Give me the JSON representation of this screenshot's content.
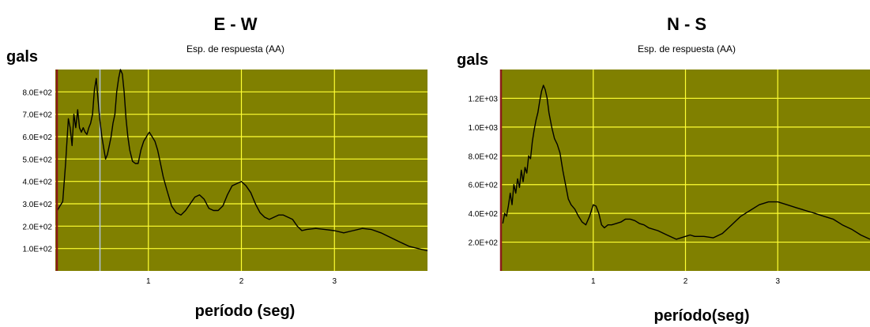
{
  "colors": {
    "plot_background": "#808000",
    "grid": "#ffff33",
    "series": "#000000",
    "left_edge": "#8b1a1a",
    "cursor_line": "#b0c4de"
  },
  "chart_data": [
    {
      "type": "line",
      "title": "E - W",
      "subtitle": "Esp. de respuesta (AA)",
      "ylabel": "gals",
      "xlabel": "período (seg)",
      "xlim": [
        0.0,
        4.0
      ],
      "ylim": [
        0,
        900
      ],
      "x_ticks": [
        {
          "value": 1,
          "label": "1"
        },
        {
          "value": 2,
          "label": "2"
        },
        {
          "value": 3,
          "label": "3"
        }
      ],
      "y_ticks": [
        {
          "value": 100,
          "label": "1.0E+02"
        },
        {
          "value": 200,
          "label": "2.0E+02"
        },
        {
          "value": 300,
          "label": "3.0E+02"
        },
        {
          "value": 400,
          "label": "4.0E+02"
        },
        {
          "value": 500,
          "label": "5.0E+02"
        },
        {
          "value": 600,
          "label": "6.0E+02"
        },
        {
          "value": 700,
          "label": "7.0E+02"
        },
        {
          "value": 800,
          "label": "8.0E+02"
        }
      ],
      "grid": true,
      "cursor_x": 0.48,
      "series": [
        {
          "x": [
            0.02,
            0.05,
            0.08,
            0.11,
            0.14,
            0.16,
            0.18,
            0.2,
            0.22,
            0.24,
            0.26,
            0.28,
            0.3,
            0.32,
            0.34,
            0.36,
            0.38,
            0.4,
            0.42,
            0.44,
            0.46,
            0.48,
            0.5,
            0.52,
            0.54,
            0.56,
            0.58,
            0.6,
            0.62,
            0.64,
            0.66,
            0.68,
            0.7,
            0.72,
            0.74,
            0.76,
            0.78,
            0.8,
            0.83,
            0.86,
            0.89,
            0.92,
            0.95,
            0.98,
            1.01,
            1.04,
            1.07,
            1.1,
            1.13,
            1.16,
            1.2,
            1.25,
            1.3,
            1.35,
            1.4,
            1.45,
            1.5,
            1.55,
            1.6,
            1.65,
            1.7,
            1.75,
            1.8,
            1.85,
            1.9,
            1.95,
            2.0,
            2.05,
            2.1,
            2.15,
            2.2,
            2.25,
            2.3,
            2.35,
            2.4,
            2.45,
            2.5,
            2.55,
            2.6,
            2.65,
            2.7,
            2.8,
            2.9,
            3.0,
            3.1,
            3.2,
            3.3,
            3.4,
            3.5,
            3.6,
            3.7,
            3.8,
            3.9,
            4.0
          ],
          "y": [
            270,
            290,
            310,
            480,
            680,
            640,
            560,
            700,
            640,
            720,
            640,
            620,
            640,
            620,
            610,
            640,
            660,
            700,
            810,
            860,
            760,
            670,
            600,
            550,
            500,
            520,
            560,
            600,
            660,
            700,
            800,
            860,
            900,
            880,
            800,
            680,
            600,
            540,
            490,
            480,
            480,
            540,
            580,
            600,
            620,
            600,
            580,
            540,
            480,
            420,
            360,
            290,
            260,
            250,
            270,
            300,
            330,
            340,
            320,
            280,
            270,
            270,
            290,
            340,
            380,
            390,
            400,
            380,
            350,
            300,
            260,
            240,
            230,
            240,
            250,
            250,
            240,
            230,
            200,
            180,
            185,
            190,
            185,
            180,
            170,
            180,
            190,
            185,
            170,
            150,
            130,
            110,
            100,
            90
          ]
        }
      ]
    },
    {
      "type": "line",
      "title": "N - S",
      "subtitle": "Esp. de respuesta (AA)",
      "ylabel": "gals",
      "xlabel": "período(seg)",
      "xlim": [
        0.0,
        4.0
      ],
      "ylim": [
        0,
        1400
      ],
      "x_ticks": [
        {
          "value": 1,
          "label": "1"
        },
        {
          "value": 2,
          "label": "2"
        },
        {
          "value": 3,
          "label": "3"
        }
      ],
      "y_ticks": [
        {
          "value": 200,
          "label": "2.0E+02"
        },
        {
          "value": 400,
          "label": "4.0E+02"
        },
        {
          "value": 600,
          "label": "6.0E+02"
        },
        {
          "value": 800,
          "label": "8.0E+02"
        },
        {
          "value": 1000,
          "label": "1.0E+03"
        },
        {
          "value": 1200,
          "label": "1.2E+03"
        }
      ],
      "grid": true,
      "series": [
        {
          "x": [
            0.02,
            0.04,
            0.06,
            0.08,
            0.1,
            0.12,
            0.14,
            0.16,
            0.18,
            0.2,
            0.22,
            0.24,
            0.26,
            0.28,
            0.3,
            0.32,
            0.34,
            0.36,
            0.38,
            0.4,
            0.42,
            0.44,
            0.46,
            0.48,
            0.5,
            0.52,
            0.55,
            0.58,
            0.61,
            0.64,
            0.67,
            0.7,
            0.73,
            0.76,
            0.8,
            0.84,
            0.88,
            0.92,
            0.96,
            1.0,
            1.03,
            1.06,
            1.09,
            1.12,
            1.16,
            1.2,
            1.25,
            1.3,
            1.35,
            1.4,
            1.45,
            1.5,
            1.55,
            1.6,
            1.7,
            1.8,
            1.9,
            2.0,
            2.05,
            2.1,
            2.2,
            2.3,
            2.4,
            2.5,
            2.6,
            2.7,
            2.8,
            2.9,
            3.0,
            3.1,
            3.2,
            3.3,
            3.4,
            3.5,
            3.6,
            3.7,
            3.8,
            3.9,
            4.0
          ],
          "y": [
            330,
            400,
            380,
            450,
            540,
            460,
            600,
            540,
            640,
            580,
            700,
            620,
            720,
            680,
            800,
            780,
            900,
            980,
            1050,
            1100,
            1180,
            1250,
            1290,
            1260,
            1200,
            1100,
            1000,
            920,
            880,
            820,
            700,
            600,
            500,
            460,
            430,
            380,
            340,
            320,
            380,
            460,
            450,
            400,
            320,
            300,
            320,
            320,
            330,
            340,
            360,
            360,
            350,
            330,
            320,
            300,
            280,
            250,
            220,
            240,
            250,
            240,
            240,
            230,
            260,
            320,
            380,
            420,
            460,
            480,
            480,
            460,
            440,
            420,
            400,
            380,
            360,
            320,
            290,
            250,
            220
          ]
        }
      ]
    }
  ]
}
